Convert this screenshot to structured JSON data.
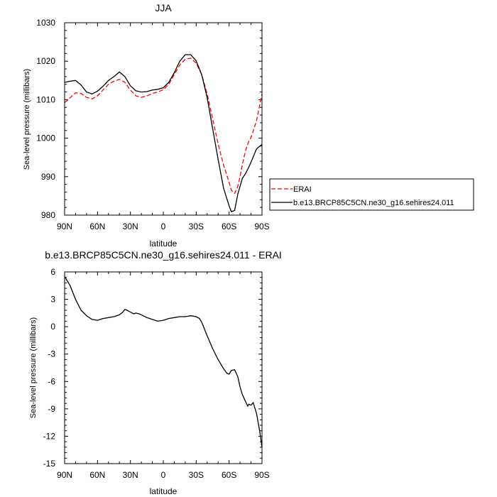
{
  "chart_data": [
    {
      "type": "line",
      "title": "JJA",
      "xlabel": "latitude",
      "ylabel": "Sea-level pressure (millibars)",
      "xlim": [
        90,
        -90
      ],
      "ylim": [
        980,
        1030
      ],
      "x_ticks": [
        90,
        60,
        30,
        0,
        -30,
        -60,
        -90
      ],
      "x_tick_labels": [
        "90N",
        "60N",
        "30N",
        "0",
        "30S",
        "60S",
        "90S"
      ],
      "y_ticks": [
        980,
        990,
        1000,
        1010,
        1020,
        1030
      ],
      "y_tick_labels": [
        "980",
        "990",
        "1000",
        "1010",
        "1020",
        "1030"
      ],
      "grid": false,
      "legend_position": "right",
      "series": [
        {
          "name": "ERAI",
          "color": "#ff0000",
          "dash": "dashed",
          "x": [
            90,
            85,
            80,
            75,
            70,
            65,
            60,
            55,
            50,
            45,
            40,
            35,
            30,
            25,
            20,
            15,
            10,
            5,
            0,
            -5,
            -10,
            -15,
            -20,
            -25,
            -30,
            -35,
            -40,
            -45,
            -50,
            -55,
            -60,
            -62,
            -65,
            -68,
            -70,
            -72,
            -75,
            -78,
            -80,
            -85,
            -90
          ],
          "y": [
            1009.2,
            1010.5,
            1011.8,
            1011.6,
            1010.6,
            1010.2,
            1011,
            1012.5,
            1014,
            1014.8,
            1015.3,
            1014.5,
            1012.5,
            1011,
            1010.6,
            1011,
            1011.6,
            1012,
            1012.6,
            1014,
            1016.5,
            1019,
            1020.5,
            1020.8,
            1019.5,
            1016.5,
            1011.5,
            1005,
            998.5,
            993,
            988.5,
            986.5,
            985.6,
            987.5,
            990,
            993,
            996.8,
            999.2,
            1000.2,
            1004.5,
            1011.5
          ]
        },
        {
          "name": "b.e13.BRCP85C5CN.ne30_g16.sehires24.011",
          "color": "#000000",
          "dash": "solid",
          "x": [
            90,
            85,
            80,
            75,
            70,
            65,
            60,
            55,
            50,
            45,
            40,
            35,
            30,
            25,
            20,
            15,
            10,
            5,
            0,
            -5,
            -10,
            -15,
            -20,
            -25,
            -30,
            -35,
            -40,
            -45,
            -50,
            -55,
            -60,
            -62,
            -65,
            -68,
            -70,
            -72,
            -75,
            -78,
            -80,
            -85,
            -90
          ],
          "y": [
            1014.5,
            1014.8,
            1015,
            1013.8,
            1012,
            1011.5,
            1012.2,
            1013.5,
            1015,
            1016,
            1017.2,
            1016,
            1013.6,
            1012.3,
            1012,
            1012.1,
            1012.5,
            1012.7,
            1013.1,
            1014.5,
            1017,
            1020,
            1021.7,
            1021.7,
            1020.1,
            1016.5,
            1010.5,
            1002.5,
            994.5,
            987,
            982.4,
            980.9,
            981.2,
            985.5,
            987.5,
            989.5,
            990.8,
            992.5,
            993.8,
            997.2,
            998.4
          ]
        }
      ]
    },
    {
      "type": "line",
      "title": "b.e13.BRCP85C5CN.ne30_g16.sehires24.011 - ERAI",
      "xlabel": "latitude",
      "ylabel": "Sea-level pressure (millibars)",
      "xlim": [
        90,
        -90
      ],
      "ylim": [
        -15,
        6
      ],
      "x_ticks": [
        90,
        60,
        30,
        0,
        -30,
        -60,
        -90
      ],
      "x_tick_labels": [
        "90N",
        "60N",
        "30N",
        "0",
        "30S",
        "60S",
        "90S"
      ],
      "y_ticks": [
        6,
        3,
        0,
        -3,
        -6,
        -9,
        -12,
        -15
      ],
      "y_tick_labels": [
        "6",
        "3",
        "0",
        "-3",
        "-6",
        "-9",
        "-12",
        "-15"
      ],
      "grid": false,
      "series": [
        {
          "color": "#000000",
          "dash": "solid",
          "x": [
            90,
            85,
            80,
            75,
            70,
            65,
            60,
            55,
            50,
            45,
            40,
            37,
            35,
            33,
            30,
            27,
            25,
            22,
            20,
            15,
            10,
            5,
            0,
            -5,
            -10,
            -15,
            -20,
            -25,
            -30,
            -33,
            -35,
            -40,
            -45,
            -50,
            -55,
            -58,
            -60,
            -62,
            -65,
            -68,
            -70,
            -72,
            -75,
            -77,
            -78,
            -80,
            -82,
            -85,
            -88,
            -90
          ],
          "y": [
            5.5,
            4.5,
            3,
            1.8,
            1.2,
            0.8,
            0.7,
            0.9,
            1,
            1.1,
            1.3,
            1.6,
            1.9,
            1.8,
            1.6,
            1.4,
            1.5,
            1.4,
            1.3,
            1,
            0.8,
            0.6,
            0.7,
            0.9,
            1,
            1.1,
            1.1,
            1.2,
            1.1,
            0.9,
            0.5,
            -1,
            -2.4,
            -3.6,
            -4.6,
            -5.1,
            -5.2,
            -4.8,
            -4.7,
            -5.5,
            -6.6,
            -7.4,
            -8.2,
            -8.7,
            -8.5,
            -8.6,
            -8.3,
            -9.5,
            -11.5,
            -13.2
          ]
        }
      ]
    }
  ]
}
